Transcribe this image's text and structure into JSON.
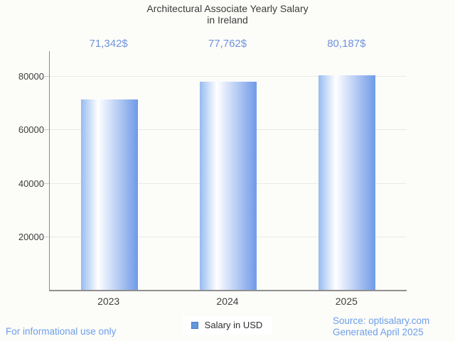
{
  "header": {
    "title_line1": "Architectural Associate Yearly Salary",
    "title_line2": "in Ireland"
  },
  "chart_data": {
    "type": "bar",
    "categories": [
      "2023",
      "2024",
      "2025"
    ],
    "values": [
      71342,
      77762,
      80187
    ],
    "value_labels": [
      "71,342$",
      "77,762$",
      "80,187$"
    ],
    "series_name": "Salary in USD",
    "title": "Architectural Associate Yearly Salary in Ireland",
    "xlabel": "",
    "ylabel": "",
    "ylim": [
      0,
      89300
    ],
    "yticks": [
      20000,
      40000,
      60000,
      80000
    ],
    "grid": true,
    "legend_position": "bottom"
  },
  "legend": {
    "label": "Salary in USD",
    "marker_icon": "legend-square-icon"
  },
  "footer": {
    "left_note": "For informational use only",
    "source_line": "Source: optisalary.com",
    "generated_line": "Generated April 2025"
  },
  "colors": {
    "background": "#fcfcf9",
    "bar_gradient_left": "#96bbf0",
    "bar_gradient_highlight": "#ffffff",
    "bar_gradient_right": "#6f9ae8",
    "value_label": "#6f94da",
    "footer_text": "#6d9eea",
    "legend_marker_fill": "#6398da",
    "legend_marker_border": "#4a7cc9",
    "gridline": "#e9e9e6",
    "title_text": "#3c3c3c"
  }
}
